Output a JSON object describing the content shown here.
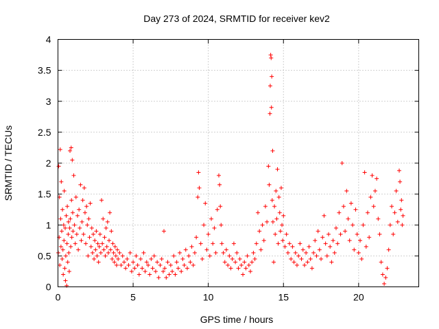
{
  "chart_data": {
    "type": "scatter",
    "title": "Day 273 of 2024, SRMTID for receiver kev2",
    "xlabel": "GPS time / hours",
    "ylabel": "SRMTID / TECUs",
    "xlim": [
      0,
      24
    ],
    "ylim": [
      0,
      4
    ],
    "xticks": [
      0,
      5,
      10,
      15,
      20
    ],
    "xtick_labels": [
      "0",
      "5",
      "10",
      "15",
      "20"
    ],
    "yticks": [
      0,
      0.5,
      1,
      1.5,
      2,
      2.5,
      3,
      3.5,
      4
    ],
    "ytick_labels": [
      "0",
      "0.5",
      "1",
      "1.5",
      "2",
      "2.5",
      "3",
      "3.5",
      "4"
    ],
    "grid": true,
    "marker": "+",
    "marker_color": "#ff0000",
    "series": [
      {
        "name": "kev2",
        "points": [
          [
            0.02,
            0.55
          ],
          [
            0.05,
            1.95
          ],
          [
            0.08,
            0.8
          ],
          [
            0.1,
            1.45
          ],
          [
            0.12,
            0.35
          ],
          [
            0.15,
            2.22
          ],
          [
            0.18,
            1.1
          ],
          [
            0.2,
            0.65
          ],
          [
            0.22,
            1.7
          ],
          [
            0.25,
            0.9
          ],
          [
            0.28,
            0.45
          ],
          [
            0.3,
            1.25
          ],
          [
            0.33,
            0.6
          ],
          [
            0.35,
            0.2
          ],
          [
            0.38,
            1.0
          ],
          [
            0.4,
            0.75
          ],
          [
            0.42,
            1.55
          ],
          [
            0.45,
            0.3
          ],
          [
            0.48,
            0.95
          ],
          [
            0.5,
            0.1
          ],
          [
            0.52,
            0.5
          ],
          [
            0.55,
            1.15
          ],
          [
            0.58,
            0.02
          ],
          [
            0.6,
            0.7
          ],
          [
            0.62,
            1.3
          ],
          [
            0.65,
            0.4
          ],
          [
            0.68,
            0.85
          ],
          [
            0.7,
            1.05
          ],
          [
            0.72,
            0.55
          ],
          [
            0.75,
            0.25
          ],
          [
            0.78,
            0.95
          ],
          [
            0.8,
            2.2
          ],
          [
            0.82,
            1.1
          ],
          [
            0.85,
            0.65
          ],
          [
            0.88,
            2.25
          ],
          [
            0.9,
            1.4
          ],
          [
            0.92,
            0.8
          ],
          [
            0.95,
            2.05
          ],
          [
            0.98,
            1.2
          ],
          [
            1.0,
            0.9
          ],
          [
            1.05,
            1.8
          ],
          [
            1.1,
            1.0
          ],
          [
            1.15,
            0.7
          ],
          [
            1.2,
            1.45
          ],
          [
            1.25,
            0.85
          ],
          [
            1.3,
            1.15
          ],
          [
            1.35,
            0.6
          ],
          [
            1.4,
            1.25
          ],
          [
            1.45,
            0.95
          ],
          [
            1.5,
            1.65
          ],
          [
            1.55,
            0.75
          ],
          [
            1.6,
            1.05
          ],
          [
            1.65,
            1.4
          ],
          [
            1.7,
            0.85
          ],
          [
            1.75,
            1.6
          ],
          [
            1.8,
            1.2
          ],
          [
            1.85,
            0.7
          ],
          [
            1.9,
            1.3
          ],
          [
            1.95,
            1.0
          ],
          [
            2.0,
            0.5
          ],
          [
            2.05,
            1.1
          ],
          [
            2.1,
            0.8
          ],
          [
            2.15,
            1.35
          ],
          [
            2.2,
            0.65
          ],
          [
            2.25,
            0.95
          ],
          [
            2.3,
            0.55
          ],
          [
            2.35,
            0.85
          ],
          [
            2.4,
            0.45
          ],
          [
            2.45,
            0.75
          ],
          [
            2.5,
            0.6
          ],
          [
            2.55,
            0.9
          ],
          [
            2.6,
            0.5
          ],
          [
            2.65,
            0.7
          ],
          [
            2.7,
            0.4
          ],
          [
            2.75,
            0.65
          ],
          [
            2.8,
            0.85
          ],
          [
            2.85,
            0.55
          ],
          [
            2.9,
            1.4
          ],
          [
            2.95,
            0.7
          ],
          [
            3.0,
            1.1
          ],
          [
            3.05,
            0.6
          ],
          [
            3.1,
            0.8
          ],
          [
            3.15,
            0.5
          ],
          [
            3.2,
            0.95
          ],
          [
            3.25,
            0.65
          ],
          [
            3.3,
            1.05
          ],
          [
            3.35,
            0.55
          ],
          [
            3.4,
            0.75
          ],
          [
            3.45,
            1.2
          ],
          [
            3.5,
            0.6
          ],
          [
            3.55,
            0.9
          ],
          [
            3.6,
            0.45
          ],
          [
            3.65,
            0.7
          ],
          [
            3.7,
            0.55
          ],
          [
            3.75,
            0.4
          ],
          [
            3.8,
            0.65
          ],
          [
            3.85,
            0.5
          ],
          [
            3.9,
            0.35
          ],
          [
            3.95,
            0.6
          ],
          [
            4.0,
            0.45
          ],
          [
            4.1,
            0.55
          ],
          [
            4.2,
            0.35
          ],
          [
            4.3,
            0.5
          ],
          [
            4.4,
            0.4
          ],
          [
            4.5,
            0.3
          ],
          [
            4.6,
            0.45
          ],
          [
            4.7,
            0.35
          ],
          [
            4.8,
            0.55
          ],
          [
            4.9,
            0.25
          ],
          [
            5.0,
            0.4
          ],
          [
            5.1,
            0.3
          ],
          [
            5.2,
            0.5
          ],
          [
            5.3,
            0.35
          ],
          [
            5.4,
            0.2
          ],
          [
            5.5,
            0.45
          ],
          [
            5.6,
            0.3
          ],
          [
            5.7,
            0.55
          ],
          [
            5.8,
            0.25
          ],
          [
            5.9,
            0.4
          ],
          [
            6.0,
            0.35
          ],
          [
            6.1,
            0.2
          ],
          [
            6.2,
            0.45
          ],
          [
            6.3,
            0.3
          ],
          [
            6.4,
            0.5
          ],
          [
            6.5,
            0.25
          ],
          [
            6.6,
            0.4
          ],
          [
            6.7,
            0.15
          ],
          [
            6.8,
            0.35
          ],
          [
            6.9,
            0.45
          ],
          [
            7.0,
            0.25
          ],
          [
            7.05,
            0.9
          ],
          [
            7.1,
            0.3
          ],
          [
            7.2,
            0.15
          ],
          [
            7.3,
            0.4
          ],
          [
            7.4,
            0.2
          ],
          [
            7.5,
            0.35
          ],
          [
            7.6,
            0.25
          ],
          [
            7.7,
            0.5
          ],
          [
            7.8,
            0.2
          ],
          [
            7.9,
            0.4
          ],
          [
            8.0,
            0.3
          ],
          [
            8.1,
            0.55
          ],
          [
            8.2,
            0.25
          ],
          [
            8.3,
            0.45
          ],
          [
            8.4,
            0.35
          ],
          [
            8.5,
            0.6
          ],
          [
            8.6,
            0.3
          ],
          [
            8.7,
            0.5
          ],
          [
            8.8,
            0.4
          ],
          [
            8.9,
            0.65
          ],
          [
            9.0,
            0.35
          ],
          [
            9.1,
            0.55
          ],
          [
            9.2,
            0.8
          ],
          [
            9.3,
            1.45
          ],
          [
            9.35,
            1.85
          ],
          [
            9.4,
            1.6
          ],
          [
            9.5,
            0.7
          ],
          [
            9.6,
            0.45
          ],
          [
            9.7,
            1.0
          ],
          [
            9.8,
            1.35
          ],
          [
            9.9,
            0.6
          ],
          [
            10.0,
            0.85
          ],
          [
            10.1,
            0.5
          ],
          [
            10.2,
            1.1
          ],
          [
            10.3,
            0.7
          ],
          [
            10.4,
            0.95
          ],
          [
            10.5,
            0.55
          ],
          [
            10.6,
            1.25
          ],
          [
            10.7,
            1.8
          ],
          [
            10.75,
            1.65
          ],
          [
            10.8,
            1.3
          ],
          [
            10.85,
            1.0
          ],
          [
            10.9,
            0.7
          ],
          [
            11.0,
            0.55
          ],
          [
            11.1,
            0.4
          ],
          [
            11.2,
            0.6
          ],
          [
            11.3,
            0.35
          ],
          [
            11.4,
            0.5
          ],
          [
            11.5,
            0.3
          ],
          [
            11.6,
            0.45
          ],
          [
            11.7,
            0.7
          ],
          [
            11.8,
            0.4
          ],
          [
            11.9,
            0.55
          ],
          [
            12.0,
            0.3
          ],
          [
            12.1,
            0.45
          ],
          [
            12.2,
            0.35
          ],
          [
            12.3,
            0.2
          ],
          [
            12.4,
            0.4
          ],
          [
            12.5,
            0.3
          ],
          [
            12.6,
            0.5
          ],
          [
            12.7,
            0.35
          ],
          [
            12.8,
            0.25
          ],
          [
            12.9,
            0.4
          ],
          [
            13.0,
            0.55
          ],
          [
            13.1,
            0.45
          ],
          [
            13.2,
            0.7
          ],
          [
            13.3,
            1.2
          ],
          [
            13.4,
            0.9
          ],
          [
            13.5,
            0.6
          ],
          [
            13.6,
            1.0
          ],
          [
            13.7,
            0.75
          ],
          [
            13.8,
            1.3
          ],
          [
            13.9,
            1.05
          ],
          [
            14.0,
            1.95
          ],
          [
            14.05,
            1.65
          ],
          [
            14.1,
            2.8
          ],
          [
            14.12,
            3.25
          ],
          [
            14.15,
            3.75
          ],
          [
            14.18,
            3.7
          ],
          [
            14.2,
            2.9
          ],
          [
            14.22,
            3.4
          ],
          [
            14.25,
            1.4
          ],
          [
            14.28,
            2.2
          ],
          [
            14.3,
            1.05
          ],
          [
            14.35,
            0.4
          ],
          [
            14.4,
            1.3
          ],
          [
            14.45,
            0.85
          ],
          [
            14.5,
            1.55
          ],
          [
            14.55,
            1.1
          ],
          [
            14.6,
            1.9
          ],
          [
            14.65,
            0.7
          ],
          [
            14.7,
            1.45
          ],
          [
            14.75,
            1.2
          ],
          [
            14.8,
            0.9
          ],
          [
            14.85,
            1.6
          ],
          [
            14.9,
            1.0
          ],
          [
            14.95,
            0.75
          ],
          [
            15.0,
            1.15
          ],
          [
            15.1,
            0.65
          ],
          [
            15.2,
            0.85
          ],
          [
            15.3,
            0.55
          ],
          [
            15.4,
            0.7
          ],
          [
            15.5,
            0.45
          ],
          [
            15.6,
            0.65
          ],
          [
            15.7,
            0.4
          ],
          [
            15.8,
            0.55
          ],
          [
            15.9,
            0.35
          ],
          [
            16.0,
            0.5
          ],
          [
            16.1,
            0.7
          ],
          [
            16.2,
            0.45
          ],
          [
            16.3,
            0.6
          ],
          [
            16.4,
            0.35
          ],
          [
            16.5,
            0.55
          ],
          [
            16.6,
            0.4
          ],
          [
            16.7,
            0.65
          ],
          [
            16.8,
            0.45
          ],
          [
            16.9,
            0.3
          ],
          [
            17.0,
            0.55
          ],
          [
            17.1,
            0.75
          ],
          [
            17.2,
            0.5
          ],
          [
            17.3,
            0.9
          ],
          [
            17.4,
            0.6
          ],
          [
            17.5,
            0.45
          ],
          [
            17.6,
            0.8
          ],
          [
            17.7,
            1.15
          ],
          [
            17.8,
            0.7
          ],
          [
            17.9,
            0.5
          ],
          [
            18.0,
            0.85
          ],
          [
            18.1,
            0.65
          ],
          [
            18.2,
            0.4
          ],
          [
            18.3,
            0.75
          ],
          [
            18.4,
            0.55
          ],
          [
            18.5,
            0.95
          ],
          [
            18.6,
            0.7
          ],
          [
            18.7,
            1.2
          ],
          [
            18.8,
            0.85
          ],
          [
            18.9,
            2.0
          ],
          [
            19.0,
            1.3
          ],
          [
            19.1,
            0.9
          ],
          [
            19.2,
            1.55
          ],
          [
            19.3,
            1.1
          ],
          [
            19.4,
            0.75
          ],
          [
            19.5,
            1.35
          ],
          [
            19.6,
            1.0
          ],
          [
            19.7,
            0.6
          ],
          [
            19.8,
            1.25
          ],
          [
            19.9,
            0.85
          ],
          [
            20.0,
            0.55
          ],
          [
            20.1,
            0.75
          ],
          [
            20.2,
            0.45
          ],
          [
            20.3,
            1.0
          ],
          [
            20.4,
            1.85
          ],
          [
            20.5,
            0.65
          ],
          [
            20.6,
            1.2
          ],
          [
            20.7,
            0.8
          ],
          [
            20.8,
            1.45
          ],
          [
            20.9,
            1.8
          ],
          [
            21.0,
            1.3
          ],
          [
            21.1,
            1.55
          ],
          [
            21.2,
            1.75
          ],
          [
            21.3,
            1.1
          ],
          [
            21.4,
            0.85
          ],
          [
            21.5,
            0.4
          ],
          [
            21.6,
            0.2
          ],
          [
            21.7,
            0.05
          ],
          [
            21.8,
            0.15
          ],
          [
            21.9,
            0.3
          ],
          [
            22.0,
            0.6
          ],
          [
            22.1,
            1.0
          ],
          [
            22.2,
            1.3
          ],
          [
            22.3,
            0.85
          ],
          [
            22.4,
            1.2
          ],
          [
            22.5,
            1.55
          ],
          [
            22.6,
            1.05
          ],
          [
            22.7,
            1.88
          ],
          [
            22.75,
            1.7
          ],
          [
            22.8,
            1.25
          ],
          [
            22.85,
            1.4
          ],
          [
            22.9,
            1.0
          ],
          [
            22.95,
            1.15
          ]
        ]
      }
    ]
  }
}
